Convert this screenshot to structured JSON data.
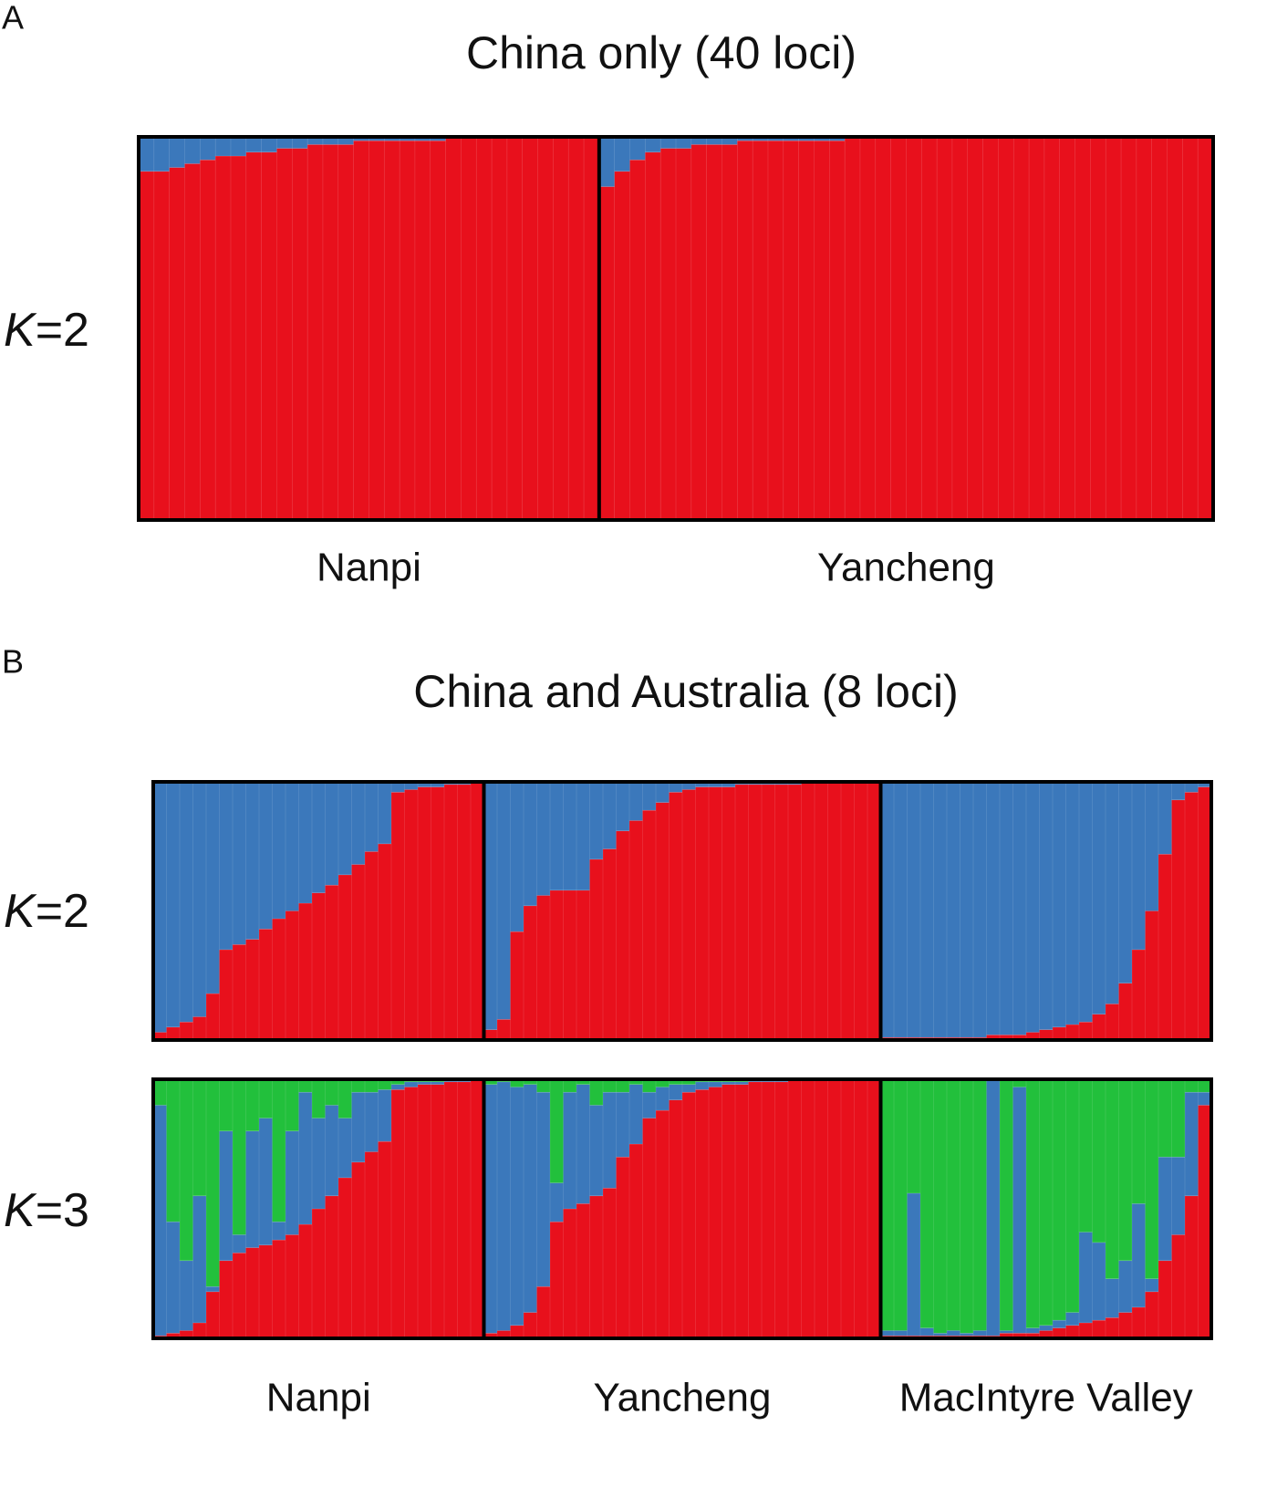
{
  "chart_data": [
    {
      "type": "structure",
      "panel": "A",
      "title": "China only (40 loci)",
      "rows": [
        {
          "k_label": [
            "K",
            "=2"
          ],
          "groups": [
            {
              "series": [
                {
                  "color": "#e8101c",
                  "values": [
                    0.91,
                    0.91,
                    0.92,
                    0.93,
                    0.94,
                    0.95,
                    0.95,
                    0.96,
                    0.96,
                    0.97,
                    0.97,
                    0.98,
                    0.98,
                    0.98,
                    0.99,
                    0.99,
                    0.99,
                    0.99,
                    0.99,
                    0.99,
                    1,
                    1,
                    1,
                    1,
                    1,
                    1,
                    1,
                    1,
                    1,
                    1
                  ]
                },
                {
                  "color": "#3b78bb",
                  "values": [
                    0.09,
                    0.09,
                    0.08,
                    0.07,
                    0.06,
                    0.05,
                    0.05,
                    0.04,
                    0.04,
                    0.03,
                    0.03,
                    0.02,
                    0.02,
                    0.02,
                    0.01,
                    0.01,
                    0.01,
                    0.01,
                    0.01,
                    0.01,
                    0,
                    0,
                    0,
                    0,
                    0,
                    0,
                    0,
                    0,
                    0,
                    0
                  ]
                }
              ]
            },
            {
              "series": [
                {
                  "color": "#e8101c",
                  "values": [
                    0.87,
                    0.91,
                    0.94,
                    0.96,
                    0.97,
                    0.97,
                    0.98,
                    0.98,
                    0.98,
                    0.99,
                    0.99,
                    0.99,
                    0.99,
                    0.99,
                    0.99,
                    0.99,
                    1,
                    1,
                    1,
                    1,
                    1,
                    1,
                    1,
                    1,
                    1,
                    1,
                    1,
                    1,
                    1,
                    1,
                    1,
                    1,
                    1,
                    1,
                    1,
                    1,
                    1,
                    1,
                    1,
                    1
                  ]
                },
                {
                  "color": "#3b78bb",
                  "values": [
                    0.13,
                    0.09,
                    0.06,
                    0.04,
                    0.03,
                    0.03,
                    0.02,
                    0.02,
                    0.02,
                    0.01,
                    0.01,
                    0.01,
                    0.01,
                    0.01,
                    0.01,
                    0.01,
                    0,
                    0,
                    0,
                    0,
                    0,
                    0,
                    0,
                    0,
                    0,
                    0,
                    0,
                    0,
                    0,
                    0,
                    0,
                    0,
                    0,
                    0,
                    0,
                    0,
                    0,
                    0,
                    0,
                    0
                  ]
                }
              ]
            }
          ]
        }
      ],
      "group_names": [
        "Nanpi",
        "Yancheng"
      ]
    },
    {
      "type": "structure",
      "panel": "B",
      "title": "China and Australia (8 loci)",
      "rows": [
        {
          "k_label": [
            "K",
            "=2"
          ],
          "groups": [
            {
              "series": [
                {
                  "color": "#e8101c",
                  "values": [
                    0.03,
                    0.05,
                    0.07,
                    0.09,
                    0.18,
                    0.35,
                    0.37,
                    0.39,
                    0.43,
                    0.47,
                    0.5,
                    0.53,
                    0.57,
                    0.6,
                    0.64,
                    0.68,
                    0.73,
                    0.76,
                    0.96,
                    0.97,
                    0.98,
                    0.98,
                    0.99,
                    0.99,
                    1.0
                  ]
                },
                {
                  "color": "#3b78bb",
                  "values": [
                    0.97,
                    0.95,
                    0.93,
                    0.91,
                    0.82,
                    0.65,
                    0.63,
                    0.61,
                    0.57,
                    0.53,
                    0.5,
                    0.47,
                    0.43,
                    0.4,
                    0.36,
                    0.32,
                    0.27,
                    0.24,
                    0.04,
                    0.03,
                    0.02,
                    0.02,
                    0.01,
                    0.01,
                    0.0
                  ]
                }
              ]
            },
            {
              "series": [
                {
                  "color": "#e8101c",
                  "values": [
                    0.04,
                    0.08,
                    0.42,
                    0.52,
                    0.56,
                    0.58,
                    0.58,
                    0.58,
                    0.7,
                    0.74,
                    0.81,
                    0.85,
                    0.89,
                    0.92,
                    0.96,
                    0.97,
                    0.98,
                    0.98,
                    0.98,
                    0.99,
                    0.99,
                    0.99,
                    0.99,
                    0.99,
                    1,
                    1,
                    1,
                    1,
                    1,
                    1
                  ]
                },
                {
                  "color": "#3b78bb",
                  "values": [
                    0.96,
                    0.92,
                    0.58,
                    0.48,
                    0.44,
                    0.42,
                    0.42,
                    0.42,
                    0.3,
                    0.26,
                    0.19,
                    0.15,
                    0.11,
                    0.08,
                    0.04,
                    0.03,
                    0.02,
                    0.02,
                    0.02,
                    0.01,
                    0.01,
                    0.01,
                    0.01,
                    0.01,
                    0,
                    0,
                    0,
                    0,
                    0,
                    0
                  ]
                }
              ]
            },
            {
              "series": [
                {
                  "color": "#e8101c",
                  "values": [
                    0.01,
                    0.01,
                    0.01,
                    0.01,
                    0.01,
                    0.01,
                    0.01,
                    0.01,
                    0.02,
                    0.02,
                    0.02,
                    0.03,
                    0.04,
                    0.05,
                    0.06,
                    0.07,
                    0.1,
                    0.14,
                    0.22,
                    0.35,
                    0.5,
                    0.72,
                    0.93,
                    0.96,
                    0.98
                  ]
                },
                {
                  "color": "#3b78bb",
                  "values": [
                    0.99,
                    0.99,
                    0.99,
                    0.99,
                    0.99,
                    0.99,
                    0.99,
                    0.99,
                    0.98,
                    0.98,
                    0.98,
                    0.97,
                    0.96,
                    0.95,
                    0.94,
                    0.93,
                    0.9,
                    0.86,
                    0.78,
                    0.65,
                    0.5,
                    0.28,
                    0.07,
                    0.04,
                    0.02
                  ]
                }
              ]
            }
          ]
        },
        {
          "k_label": [
            "K",
            "=3"
          ],
          "groups": [
            {
              "series": [
                {
                  "color": "#e8101c",
                  "values": [
                    0.01,
                    0.02,
                    0.03,
                    0.06,
                    0.18,
                    0.3,
                    0.33,
                    0.35,
                    0.36,
                    0.38,
                    0.4,
                    0.44,
                    0.5,
                    0.55,
                    0.62,
                    0.68,
                    0.72,
                    0.76,
                    0.96,
                    0.97,
                    0.98,
                    0.98,
                    0.99,
                    0.99,
                    1.0
                  ]
                },
                {
                  "color": "#3b78bb",
                  "values": [
                    0.89,
                    0.43,
                    0.27,
                    0.49,
                    0.02,
                    0.5,
                    0.07,
                    0.45,
                    0.49,
                    0.07,
                    0.4,
                    0.51,
                    0.35,
                    0.35,
                    0.23,
                    0.27,
                    0.23,
                    0.2,
                    0.02,
                    0.02,
                    0.01,
                    0.01,
                    0.01,
                    0.01,
                    0.0
                  ]
                },
                {
                  "color": "#22c03c",
                  "values": [
                    0.1,
                    0.55,
                    0.7,
                    0.45,
                    0.8,
                    0.2,
                    0.6,
                    0.2,
                    0.15,
                    0.55,
                    0.2,
                    0.05,
                    0.15,
                    0.1,
                    0.15,
                    0.05,
                    0.05,
                    0.04,
                    0.02,
                    0.01,
                    0.01,
                    0.01,
                    0.0,
                    0.0,
                    0.0
                  ]
                }
              ]
            },
            {
              "series": [
                {
                  "color": "#e8101c",
                  "values": [
                    0.02,
                    0.03,
                    0.05,
                    0.1,
                    0.2,
                    0.45,
                    0.5,
                    0.52,
                    0.55,
                    0.58,
                    0.7,
                    0.75,
                    0.85,
                    0.88,
                    0.92,
                    0.95,
                    0.96,
                    0.97,
                    0.98,
                    0.98,
                    0.99,
                    0.99,
                    0.99,
                    1,
                    1,
                    1,
                    1,
                    1,
                    1,
                    1
                  ]
                },
                {
                  "color": "#3b78bb",
                  "values": [
                    0.96,
                    0.96,
                    0.92,
                    0.88,
                    0.75,
                    0.15,
                    0.45,
                    0.46,
                    0.35,
                    0.37,
                    0.25,
                    0.23,
                    0.1,
                    0.09,
                    0.06,
                    0.03,
                    0.03,
                    0.02,
                    0.01,
                    0.01,
                    0.01,
                    0.01,
                    0.01,
                    0,
                    0,
                    0,
                    0,
                    0,
                    0,
                    0
                  ]
                },
                {
                  "color": "#22c03c",
                  "values": [
                    0.02,
                    0.01,
                    0.03,
                    0.02,
                    0.05,
                    0.4,
                    0.05,
                    0.02,
                    0.1,
                    0.05,
                    0.05,
                    0.02,
                    0.05,
                    0.03,
                    0.02,
                    0.02,
                    0.01,
                    0.01,
                    0.01,
                    0.01,
                    0,
                    0,
                    0,
                    0,
                    0,
                    0,
                    0,
                    0,
                    0,
                    0
                  ]
                }
              ]
            },
            {
              "series": [
                {
                  "color": "#e8101c",
                  "values": [
                    0.01,
                    0.01,
                    0.01,
                    0.01,
                    0.01,
                    0.01,
                    0.01,
                    0.01,
                    0.01,
                    0.02,
                    0.02,
                    0.02,
                    0.03,
                    0.04,
                    0.05,
                    0.06,
                    0.07,
                    0.08,
                    0.1,
                    0.12,
                    0.18,
                    0.3,
                    0.4,
                    0.55,
                    0.9
                  ]
                },
                {
                  "color": "#3b78bb",
                  "values": [
                    0.02,
                    0.02,
                    0.55,
                    0.03,
                    0.01,
                    0.02,
                    0.01,
                    0.02,
                    0.99,
                    0.01,
                    0.95,
                    0.02,
                    0.02,
                    0.03,
                    0.05,
                    0.35,
                    0.3,
                    0.15,
                    0.2,
                    0.4,
                    0.05,
                    0.4,
                    0.3,
                    0.4,
                    0.05
                  ]
                },
                {
                  "color": "#22c03c",
                  "values": [
                    0.97,
                    0.97,
                    0.44,
                    0.96,
                    0.98,
                    0.97,
                    0.98,
                    0.97,
                    0.0,
                    0.97,
                    0.03,
                    0.96,
                    0.95,
                    0.93,
                    0.9,
                    0.59,
                    0.63,
                    0.77,
                    0.7,
                    0.48,
                    0.77,
                    0.3,
                    0.3,
                    0.05,
                    0.05
                  ]
                }
              ]
            }
          ]
        }
      ],
      "group_names": [
        "Nanpi",
        "Yancheng",
        "MacIntyre Valley"
      ]
    }
  ]
}
